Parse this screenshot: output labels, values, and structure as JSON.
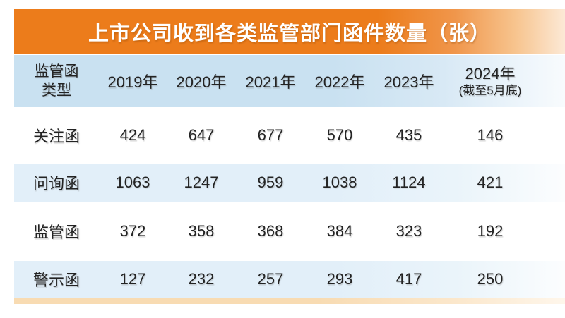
{
  "title": "上市公司收到各类监管部门函件数量（张）",
  "header": {
    "type_label": "监管函\n类型",
    "years": [
      "2019年",
      "2020年",
      "2021年",
      "2022年",
      "2023年"
    ],
    "last_year": "2024年",
    "last_year_note": "(截至5月底)"
  },
  "chart_data": {
    "type": "table",
    "title": "上市公司收到各类监管部门函件数量（张）",
    "categories": [
      "2019年",
      "2020年",
      "2021年",
      "2022年",
      "2023年",
      "2024年(截至5月底)"
    ],
    "row_header_label": "监管函类型",
    "series": [
      {
        "name": "关注函",
        "values": [
          424,
          647,
          677,
          570,
          435,
          146
        ]
      },
      {
        "name": "问询函",
        "values": [
          1063,
          1247,
          959,
          1038,
          1124,
          421
        ]
      },
      {
        "name": "监管函",
        "values": [
          372,
          358,
          368,
          384,
          323,
          192
        ]
      },
      {
        "name": "警示函",
        "values": [
          127,
          232,
          257,
          293,
          417,
          250
        ]
      }
    ]
  },
  "colors": {
    "banner_orange": "#EC7C1B",
    "banner_fade": "#FCE9D6",
    "header_blue": "#C9E1F1",
    "row_blue": "#E2EFF9",
    "accent_strip": "#F8DBB2",
    "title_text": "#FFFFFF",
    "body_text": "#232323",
    "background": "#FFFFFF"
  }
}
